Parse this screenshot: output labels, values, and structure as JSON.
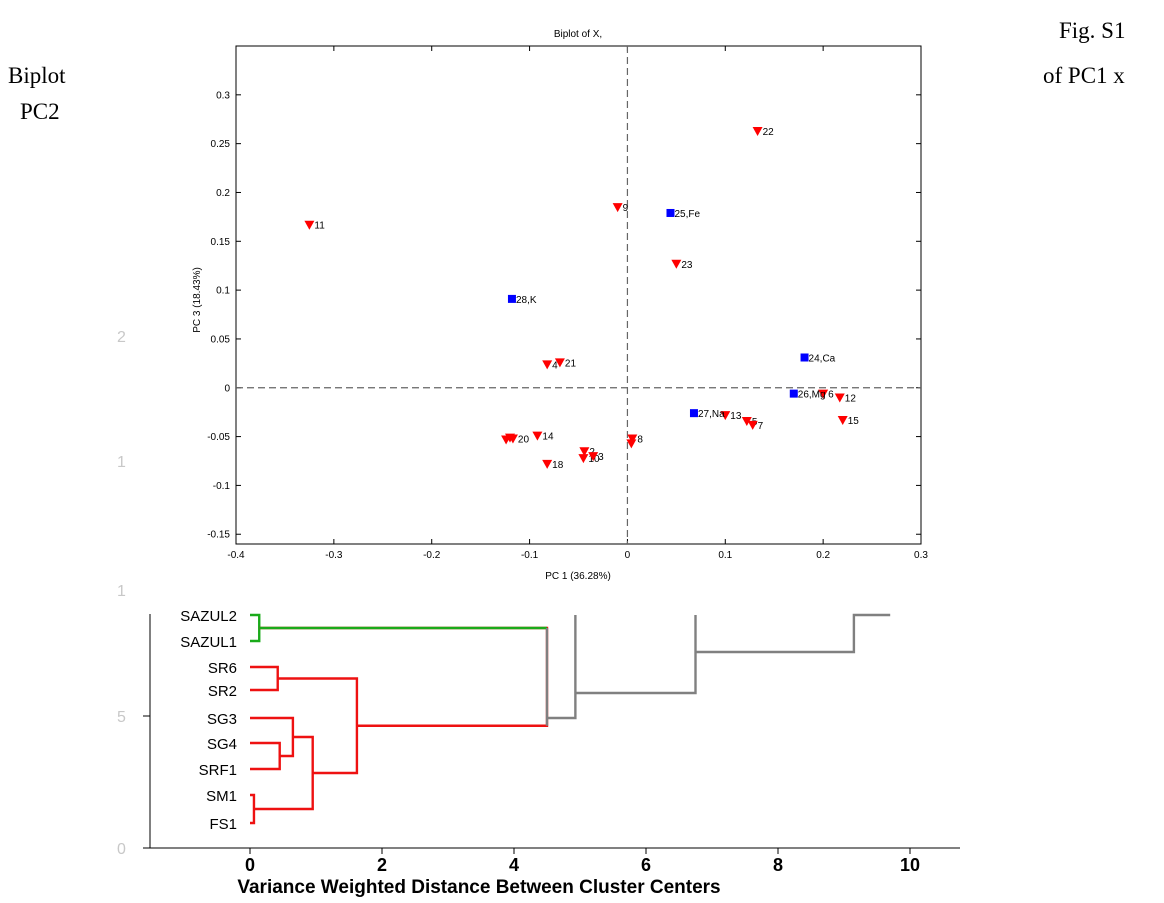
{
  "caption": {
    "fig": "Fig. S1",
    "line1_left": "Biplot",
    "line1_right": "of PC1 x",
    "line2": "PC2"
  },
  "chart_data": [
    {
      "type": "scatter",
      "title": "Biplot of X,",
      "xlabel": "PC 1 (36.28%)",
      "ylabel": "PC 3 (18.43%)",
      "xlim": [
        -0.4,
        0.3
      ],
      "ylim": [
        -0.16,
        0.35
      ],
      "xticks": [
        -0.4,
        -0.3,
        -0.2,
        -0.1,
        0,
        0.1,
        0.2,
        0.3
      ],
      "xtick_labels": [
        "-0.4",
        "-0.3",
        "-0.2",
        "-0.1",
        "0",
        "0.1",
        "0.2",
        "0.3"
      ],
      "yticks": [
        -0.15,
        -0.1,
        -0.05,
        0,
        0.05,
        0.1,
        0.15,
        0.2,
        0.25,
        0.3
      ],
      "ytick_labels": [
        "-0.15",
        "-0.1",
        "-0.05",
        "0",
        "0.05",
        "0.1",
        "0.15",
        "0.2",
        "0.25",
        "0.3"
      ],
      "reference_lines": {
        "x": 0,
        "y": 0,
        "style": "dashed"
      },
      "colors": {
        "samples": "#ff0000",
        "variables": "#0000ff",
        "reference": "#666666"
      },
      "samples": [
        {
          "label": "11",
          "x": -0.325,
          "y": 0.167
        },
        {
          "label": "22",
          "x": 0.133,
          "y": 0.263
        },
        {
          "label": "9",
          "x": -0.01,
          "y": 0.185
        },
        {
          "label": "23",
          "x": 0.05,
          "y": 0.127
        },
        {
          "label": "4",
          "x": -0.082,
          "y": 0.024
        },
        {
          "label": "21",
          "x": -0.069,
          "y": 0.026
        },
        {
          "label": "6",
          "x": 0.2,
          "y": -0.006
        },
        {
          "label": "12",
          "x": 0.217,
          "y": -0.01
        },
        {
          "label": "15",
          "x": 0.22,
          "y": -0.033
        },
        {
          "label": "13",
          "x": 0.1,
          "y": -0.028
        },
        {
          "label": "5",
          "x": 0.122,
          "y": -0.034
        },
        {
          "label": "7",
          "x": 0.128,
          "y": -0.038
        },
        {
          "label": "14",
          "x": -0.092,
          "y": -0.049
        },
        {
          "label": "",
          "x": -0.12,
          "y": -0.051
        },
        {
          "label": "",
          "x": -0.124,
          "y": -0.053
        },
        {
          "label": "20",
          "x": -0.117,
          "y": -0.052
        },
        {
          "label": "2",
          "x": -0.044,
          "y": -0.065
        },
        {
          "label": "10",
          "x": -0.045,
          "y": -0.072
        },
        {
          "label": "3",
          "x": -0.035,
          "y": -0.07
        },
        {
          "label": "8",
          "x": 0.005,
          "y": -0.052
        },
        {
          "label": "",
          "x": 0.004,
          "y": -0.057
        },
        {
          "label": "18",
          "x": -0.082,
          "y": -0.078
        }
      ],
      "variables": [
        {
          "label": "25,Fe",
          "x": 0.044,
          "y": 0.179
        },
        {
          "label": "28,K",
          "x": -0.118,
          "y": 0.091
        },
        {
          "label": "24,Ca",
          "x": 0.181,
          "y": 0.031
        },
        {
          "label": "26,Mg",
          "x": 0.17,
          "y": -0.006
        },
        {
          "label": "27,Na",
          "x": 0.068,
          "y": -0.026
        }
      ]
    },
    {
      "type": "dendrogram",
      "xlabel": "Variance Weighted Distance Between Cluster Centers",
      "xlim": [
        -1.2,
        11.2
      ],
      "xticks": [
        0,
        2,
        4,
        6,
        8,
        10
      ],
      "xtick_labels": [
        "0",
        "2",
        "4",
        "6",
        "8",
        "10"
      ],
      "ytick_labels": [
        "0",
        "5"
      ],
      "leaves": [
        "SAZUL2",
        "SAZUL1",
        "SR6",
        "SR2",
        "SG3",
        "SG4",
        "SRF1",
        "SM1",
        "FS1"
      ],
      "colors": {
        "green_cluster": "#1aaa1a",
        "red_cluster": "#ee1111",
        "gray": "#808080"
      },
      "merges": [
        {
          "color": "green",
          "height": 0.14,
          "nodes": [
            "SAZUL2",
            "SAZUL1"
          ]
        },
        {
          "color": "red",
          "height": 0.42,
          "nodes": [
            "SR6",
            "SR2"
          ]
        },
        {
          "color": "red",
          "height": 0.06,
          "nodes": [
            "SM1",
            "FS1"
          ]
        },
        {
          "color": "red",
          "height": 0.45,
          "nodes": [
            "SG4",
            "SRF1"
          ]
        },
        {
          "color": "red",
          "height": 0.65,
          "nodes": [
            "SG3",
            "SG4+SRF1"
          ]
        },
        {
          "color": "red",
          "height": 0.95,
          "nodes": [
            "SG3+SG4+SRF1",
            "SM1+FS1"
          ]
        },
        {
          "color": "red",
          "height": 1.62,
          "nodes": [
            "SR6+SR2",
            "SG+SRF1+SM1+FS1"
          ]
        },
        {
          "color": "gray",
          "height": 4.5,
          "nodes": [
            "SAZUL",
            "red-cluster"
          ]
        },
        {
          "color": "gray",
          "height": 4.93,
          "nodes": [
            "above",
            "off-image"
          ]
        },
        {
          "color": "gray",
          "height": 6.75,
          "nodes": [
            "above",
            "off-image"
          ]
        },
        {
          "color": "gray",
          "height": 9.15,
          "nodes": [
            "above",
            "off-image"
          ]
        }
      ]
    }
  ],
  "background_axis": {
    "labels": [
      "2",
      "1",
      "1"
    ],
    "color": "#c8c8c8"
  }
}
